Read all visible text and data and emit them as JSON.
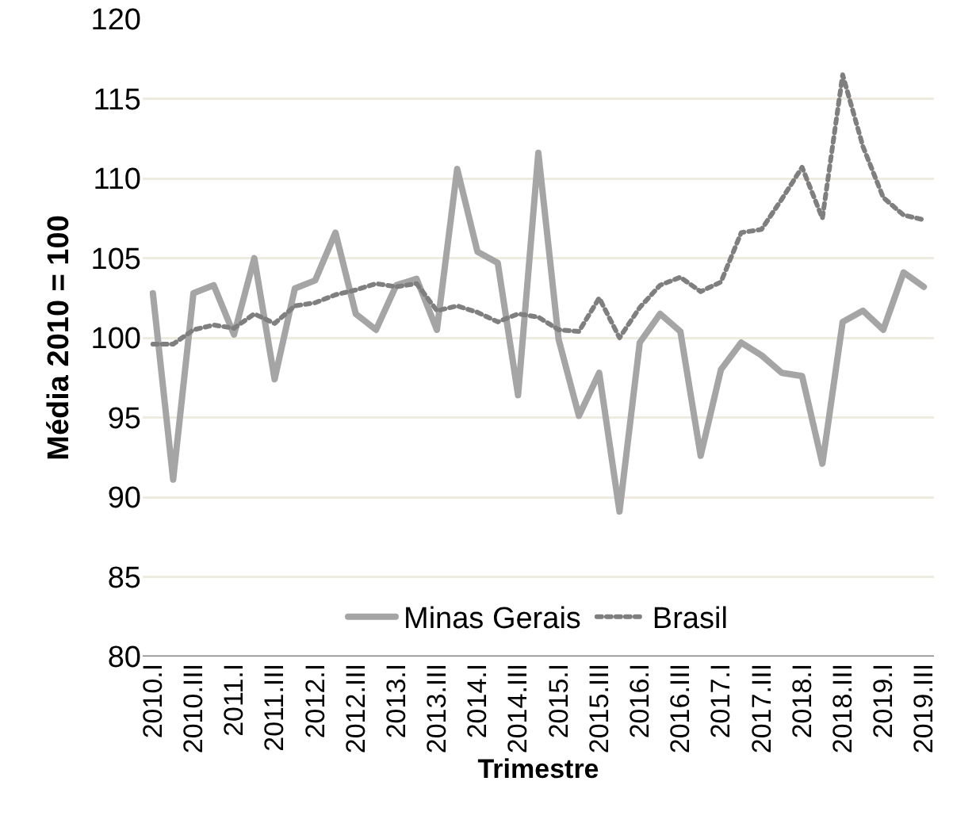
{
  "chart_data": {
    "type": "line",
    "xlabel": "Trimestre",
    "ylabel": "Média 2010 = 100",
    "categories": [
      "2010.I",
      null,
      "2010.III",
      null,
      "2011.I",
      null,
      "2011.III",
      null,
      "2012.I",
      null,
      "2012.III",
      null,
      "2013.I",
      null,
      "2013.III",
      null,
      "2014.I",
      null,
      "2014.III",
      null,
      "2015.I",
      null,
      "2015.III",
      null,
      "2016.I",
      null,
      "2016.III",
      null,
      "2017.I",
      null,
      "2017.III",
      null,
      "2018.I",
      null,
      "2018.III",
      null,
      "2019.I",
      null,
      "2019.III"
    ],
    "series": [
      {
        "name": "Minas Gerais",
        "color": "#a5a5a5",
        "line_style": "solid",
        "values": [
          102.8,
          91.1,
          102.8,
          103.3,
          100.2,
          105.0,
          97.4,
          103.1,
          103.6,
          106.6,
          101.5,
          100.5,
          103.3,
          103.7,
          100.5,
          110.6,
          105.4,
          104.7,
          96.4,
          111.6,
          99.9,
          95.1,
          97.8,
          89.1,
          99.7,
          101.5,
          100.4,
          92.6,
          98.0,
          99.7,
          98.9,
          97.8,
          97.6,
          92.1,
          101.0,
          101.7,
          100.5,
          104.1,
          103.2
        ]
      },
      {
        "name": "Brasil",
        "color": "#7f7f7f",
        "line_style": "dotted",
        "values": [
          99.6,
          99.6,
          100.5,
          100.8,
          100.6,
          101.5,
          100.9,
          102.0,
          102.2,
          102.7,
          103.0,
          103.4,
          103.2,
          103.4,
          101.7,
          102.0,
          101.6,
          101.0,
          101.5,
          101.3,
          100.5,
          100.4,
          102.5,
          100.0,
          101.9,
          103.3,
          103.8,
          102.9,
          103.5,
          106.6,
          106.8,
          108.7,
          110.7,
          107.5,
          116.5,
          112.0,
          108.8,
          107.7,
          107.4
        ]
      }
    ],
    "ylim": [
      80,
      120
    ],
    "yticks": [
      80,
      85,
      90,
      95,
      100,
      105,
      110,
      115,
      120
    ],
    "grid": "y",
    "legend": "bottom",
    "marker": "none"
  }
}
